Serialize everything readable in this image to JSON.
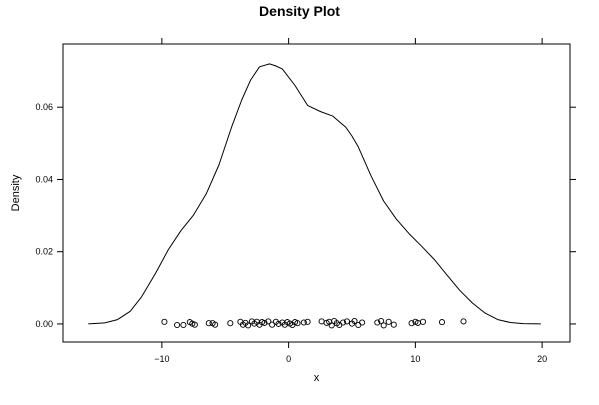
{
  "chart_data": {
    "type": "line",
    "title": "Density Plot",
    "xlabel": "x",
    "ylabel": "Density",
    "xlim": [
      -17.8,
      22.2
    ],
    "ylim": [
      -0.005,
      0.0775
    ],
    "x_ticks": [
      -10,
      0,
      10,
      20
    ],
    "x_tick_labels": [
      "−10",
      "0",
      "10",
      "20"
    ],
    "y_ticks": [
      0.0,
      0.02,
      0.04,
      0.06
    ],
    "y_tick_labels": [
      "0.00",
      "0.02",
      "0.04",
      "0.06"
    ],
    "grid": false,
    "series": [
      {
        "type": "line",
        "color": "#000000",
        "x": [
          -15.8,
          -14.5,
          -13.5,
          -12.5,
          -11.6,
          -10.5,
          -9.5,
          -8.5,
          -7.5,
          -6.5,
          -5.5,
          -4.5,
          -3.7,
          -3.0,
          -2.3,
          -1.5,
          -1.0,
          -0.5,
          0.5,
          1.5,
          2.5,
          3.5,
          4.0,
          4.5,
          5.0,
          5.5,
          6.5,
          7.5,
          8.5,
          9.5,
          10.5,
          11.5,
          12.5,
          13.5,
          14.5,
          15.5,
          16.5,
          17.5,
          18.5,
          19.9
        ],
        "y": [
          0.0,
          0.0003,
          0.0012,
          0.0035,
          0.0075,
          0.014,
          0.0205,
          0.0258,
          0.0302,
          0.036,
          0.044,
          0.0545,
          0.062,
          0.0675,
          0.0712,
          0.072,
          0.0714,
          0.0706,
          0.066,
          0.0605,
          0.0588,
          0.0575,
          0.056,
          0.0545,
          0.052,
          0.049,
          0.041,
          0.034,
          0.029,
          0.025,
          0.0215,
          0.0178,
          0.0135,
          0.0093,
          0.0058,
          0.003,
          0.0012,
          0.0004,
          0.0001,
          0.0
        ]
      },
      {
        "type": "scatter",
        "marker": "open-circle",
        "color": "#000000",
        "x": [
          -9.8,
          -8.8,
          -8.3,
          -7.8,
          -7.6,
          -7.4,
          -6.3,
          -6.0,
          -5.8,
          -4.6,
          -3.8,
          -3.6,
          -3.4,
          -3.2,
          -2.9,
          -2.7,
          -2.5,
          -2.3,
          -2.1,
          -1.9,
          -1.6,
          -1.3,
          -1.0,
          -0.8,
          -0.5,
          -0.3,
          -0.1,
          0.1,
          0.3,
          0.5,
          0.7,
          1.2,
          1.5,
          2.6,
          3.0,
          3.2,
          3.4,
          3.6,
          3.8,
          4.0,
          4.3,
          4.6,
          5.0,
          5.2,
          5.5,
          5.8,
          7.0,
          7.3,
          7.5,
          7.9,
          8.3,
          9.7,
          10.0,
          10.2,
          10.6,
          12.1,
          13.8
        ],
        "y": [
          0.0006,
          -0.0003,
          -0.0003,
          0.0005,
          0.0001,
          -0.0002,
          0.0002,
          0.0002,
          -0.0002,
          0.0002,
          0.0006,
          -0.0002,
          0.0003,
          -0.0004,
          0.0007,
          0.0001,
          0.0006,
          -0.0002,
          0.0005,
          0.0003,
          0.0007,
          -0.0002,
          0.0006,
          0.0,
          0.0004,
          -0.0002,
          0.0005,
          0.0001,
          -0.0003,
          0.0005,
          0.0002,
          0.0004,
          0.0006,
          0.0007,
          0.0003,
          0.0006,
          -0.0004,
          0.0008,
          0.0002,
          -0.0003,
          0.0004,
          0.0007,
          0.0001,
          0.0008,
          -0.0003,
          0.0004,
          0.0004,
          0.0008,
          -0.0004,
          0.0006,
          -0.0002,
          0.0002,
          0.0006,
          0.0003,
          0.0006,
          0.0005,
          0.0007
        ]
      }
    ]
  }
}
